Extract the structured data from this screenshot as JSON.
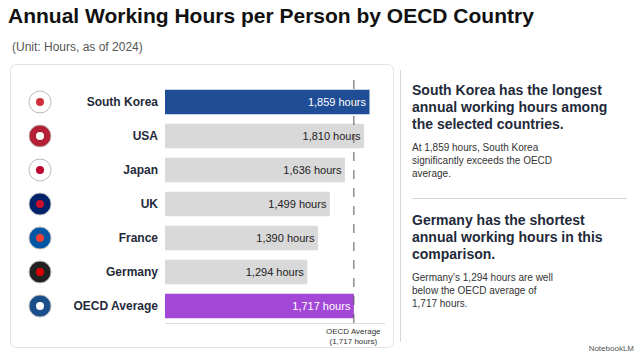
{
  "chart_data": {
    "type": "bar",
    "orientation": "horizontal",
    "title": "Annual Working Hours per Person by OECD Country",
    "subtitle": "(Unit: Hours, as of 2024)",
    "categories": [
      "South Korea",
      "USA",
      "Japan",
      "UK",
      "France",
      "Germany",
      "OECD Average"
    ],
    "values": [
      1859,
      1810,
      1636,
      1499,
      1390,
      1294,
      1717
    ],
    "value_labels": [
      "1,859 hours",
      "1,810 hours",
      "1,636 hours",
      "1,499 hours",
      "1,390 hours",
      "1,294 hours",
      "1,717 hours"
    ],
    "data_labels": true,
    "colors": [
      "#1f4e96",
      "#d9d9d9",
      "#d9d9d9",
      "#d9d9d9",
      "#d9d9d9",
      "#d9d9d9",
      "#a347d6"
    ],
    "xlim": [
      0,
      2000
    ],
    "xticks": [],
    "tick_labels": "y",
    "grid": false,
    "reference_line": {
      "value": 1717,
      "label": [
        "OECD Average",
        "(1,717 hours)"
      ]
    },
    "annotations": [
      {
        "heading": "South Korea has the longest annual working hours among the selected countries.",
        "text": "At 1,859 hours, South Korea significantly exceeds the OECD average."
      },
      {
        "heading": "Germany has the shortest annual working hours in this comparison.",
        "text": "Germany's 1,294 hours are well below the OECD average of 1,717 hours."
      }
    ]
  },
  "watermark": "NotebookLM"
}
